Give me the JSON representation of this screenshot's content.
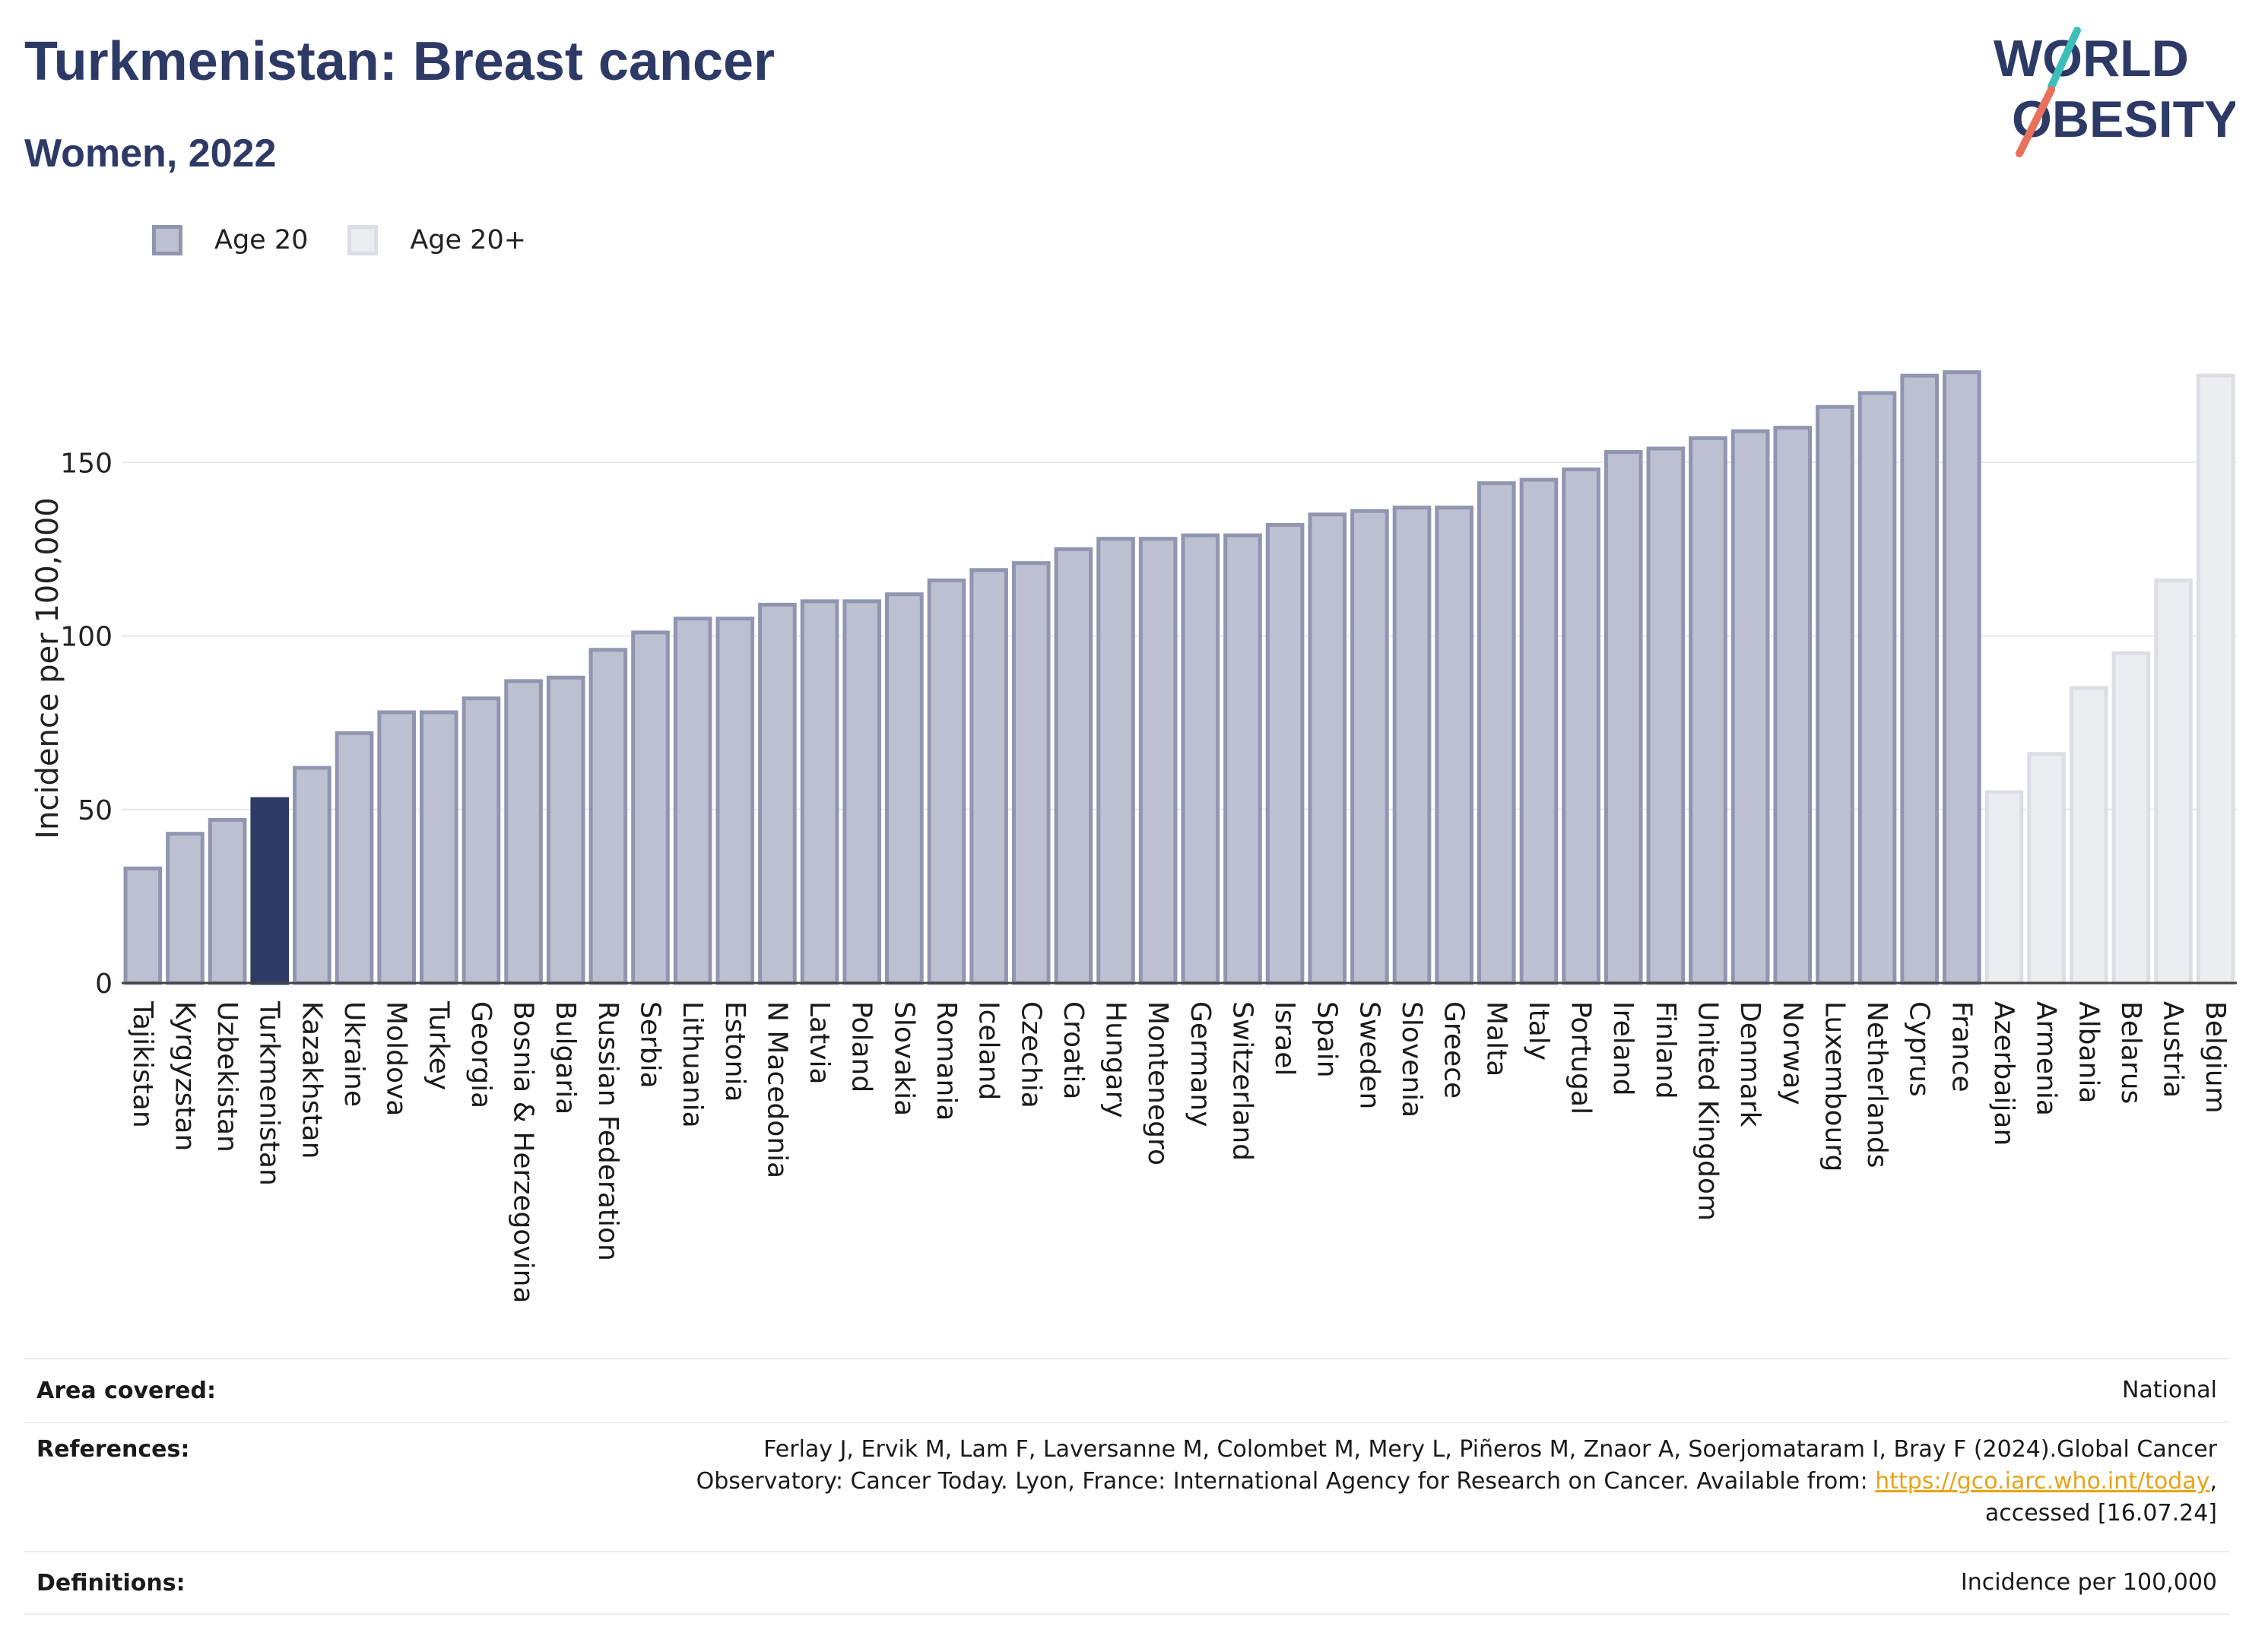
{
  "header": {
    "title": "Turkmenistan: Breast cancer",
    "subtitle": "Women, 2022"
  },
  "logo": {
    "line1": "WORLD",
    "line2": "OBESITY"
  },
  "colors": {
    "highlight": "#2d3a66",
    "age20_fill": "#bcc0d0",
    "age20_stroke": "#9096b0",
    "age20plus_fill": "#ecedf1",
    "age20plus_stroke": "#dcdee6",
    "logo_text": "#2d3a66",
    "logo_teal": "#3bbfb8",
    "logo_coral": "#e8715b",
    "link": "#e8a317"
  },
  "chart_data": {
    "type": "bar",
    "ylabel": "Incidence per 100,000",
    "ylim": [
      0,
      177
    ],
    "yticks": [
      0,
      50,
      100,
      150
    ],
    "grid": true,
    "legend_position": "top-left",
    "legend": [
      "Age 20",
      "Age 20+"
    ],
    "highlight": "Turkmenistan",
    "series": [
      {
        "name": "Age 20",
        "categories": [
          "Tajikistan",
          "Kyrgyzstan",
          "Uzbekistan",
          "Turkmenistan",
          "Kazakhstan",
          "Ukraine",
          "Moldova",
          "Turkey",
          "Georgia",
          "Bosnia & Herzegovina",
          "Bulgaria",
          "Russian Federation",
          "Serbia",
          "Lithuania",
          "Estonia",
          "N Macedonia",
          "Latvia",
          "Poland",
          "Slovakia",
          "Romania",
          "Iceland",
          "Czechia",
          "Croatia",
          "Hungary",
          "Montenegro",
          "Germany",
          "Switzerland",
          "Israel",
          "Spain",
          "Sweden",
          "Slovenia",
          "Greece",
          "Malta",
          "Italy",
          "Portugal",
          "Ireland",
          "Finland",
          "United Kingdom",
          "Denmark",
          "Norway",
          "Luxembourg",
          "Netherlands",
          "Cyprus",
          "France"
        ],
        "values": [
          33,
          43,
          47,
          53,
          62,
          72,
          78,
          78,
          82,
          87,
          88,
          96,
          101,
          105,
          105,
          109,
          110,
          110,
          112,
          116,
          119,
          121,
          125,
          128,
          128,
          129,
          129,
          132,
          135,
          136,
          137,
          137,
          144,
          145,
          148,
          153,
          154,
          157,
          159,
          160,
          166,
          170,
          175,
          176
        ]
      },
      {
        "name": "Age 20+",
        "categories": [
          "Azerbaijan",
          "Armenia",
          "Albania",
          "Belarus",
          "Austria",
          "Belgium"
        ],
        "values": [
          55,
          66,
          85,
          95,
          116,
          175
        ]
      }
    ]
  },
  "footer": {
    "area_label": "Area covered:",
    "area_value": "National",
    "ref_label": "References:",
    "ref_line1": "Ferlay J, Ervik M, Lam F, Laversanne M, Colombet M, Mery L, Piñeros M, Znaor A, Soerjomataram I, Bray F (2024).Global Cancer",
    "ref_line2_pre": "Observatory: Cancer Today. Lyon, France: International Agency for Research on Cancer. Available from: ",
    "ref_link": "https://gco.iarc.who.int/today",
    "ref_line2_post": ",",
    "ref_line3": "accessed [16.07.24]",
    "def_label": "Definitions:",
    "def_value": "Incidence per 100,000"
  }
}
